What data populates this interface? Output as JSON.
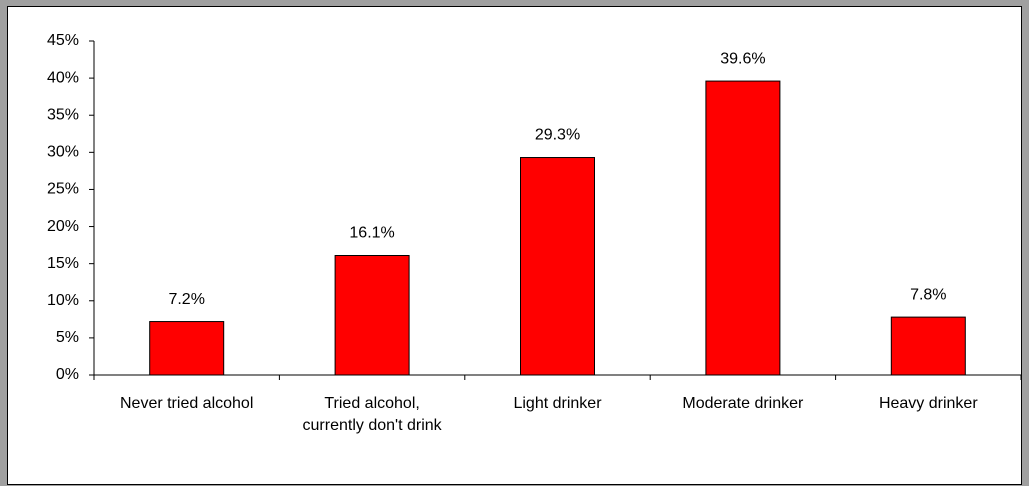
{
  "chart_data": {
    "type": "bar",
    "categories": [
      "Never tried alcohol",
      "Tried alcohol, currently don't drink",
      "Light drinker",
      "Moderate drinker",
      "Heavy drinker"
    ],
    "values": [
      7.2,
      16.1,
      29.3,
      39.6,
      7.8
    ],
    "value_labels": [
      "7.2%",
      "16.1%",
      "29.3%",
      "39.6%",
      "7.8%"
    ],
    "color": "#ff0000",
    "ylim": [
      0,
      45
    ],
    "yticks": [
      {
        "value": 0,
        "label": "0%"
      },
      {
        "value": 5,
        "label": "5%"
      },
      {
        "value": 10,
        "label": "10%"
      },
      {
        "value": 15,
        "label": "15%"
      },
      {
        "value": 20,
        "label": "20%"
      },
      {
        "value": 25,
        "label": "25%"
      },
      {
        "value": 30,
        "label": "30%"
      },
      {
        "value": 35,
        "label": "35%"
      },
      {
        "value": 40,
        "label": "40%"
      },
      {
        "value": 45,
        "label": "45%"
      }
    ],
    "grid": false
  }
}
